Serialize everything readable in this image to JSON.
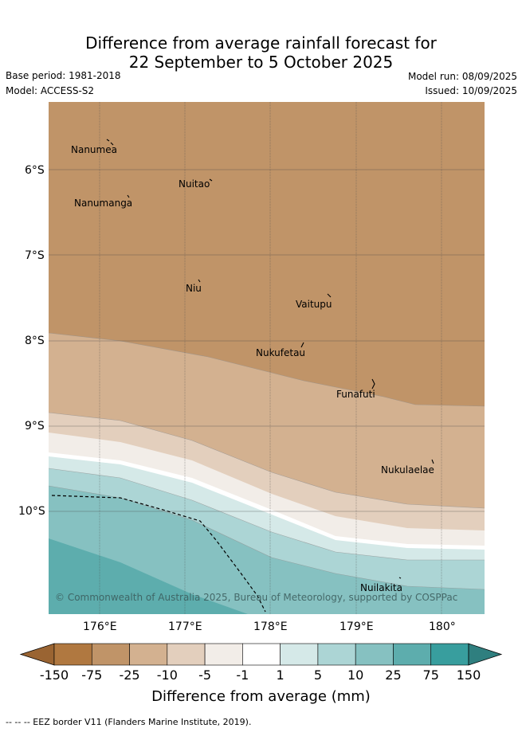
{
  "title_line1": "Difference from average rainfall forecast for",
  "title_line2": "22 September to 5 October 2025",
  "base_period": "Base period: 1981-2018",
  "model": "Model: ACCESS-S2",
  "model_run": "Model run: 08/09/2025",
  "issued": "Issued: 10/09/2025",
  "y_ticks": [
    "6°S",
    "7°S",
    "8°S",
    "9°S",
    "10°S"
  ],
  "x_ticks": [
    "176°E",
    "177°E",
    "178°E",
    "179°E",
    "180°"
  ],
  "islands": [
    {
      "name": "Nanumea"
    },
    {
      "name": "Nuitao"
    },
    {
      "name": "Nanumanga"
    },
    {
      "name": "Niu"
    },
    {
      "name": "Vaitupu"
    },
    {
      "name": "Nukufetau"
    },
    {
      "name": "Funafuti"
    },
    {
      "name": "Nukulaelae"
    },
    {
      "name": "Nuilakita"
    }
  ],
  "copyright": "© Commonwealth of Australia 2025, Bureau of Meteorology, supported by COSPPac",
  "colorbar": {
    "labels": [
      "-150",
      "-75",
      "-25",
      "-10",
      "-5",
      "-1",
      "1",
      "5",
      "10",
      "25",
      "75",
      "150"
    ],
    "colors": [
      "#b07840",
      "#c09468",
      "#d3b190",
      "#e3cfbd",
      "#f2ede8",
      "#ffffff",
      "#d5e9e8",
      "#acd5d5",
      "#86c1c1",
      "#5dadad",
      "#389e9e"
    ],
    "low_color": "#9a6432",
    "high_color": "#2f7f7f"
  },
  "colorbar_title": "Difference from average (mm)",
  "footer": "--  --  -- EEZ border V11 (Flanders Marine Institute, 2019)."
}
